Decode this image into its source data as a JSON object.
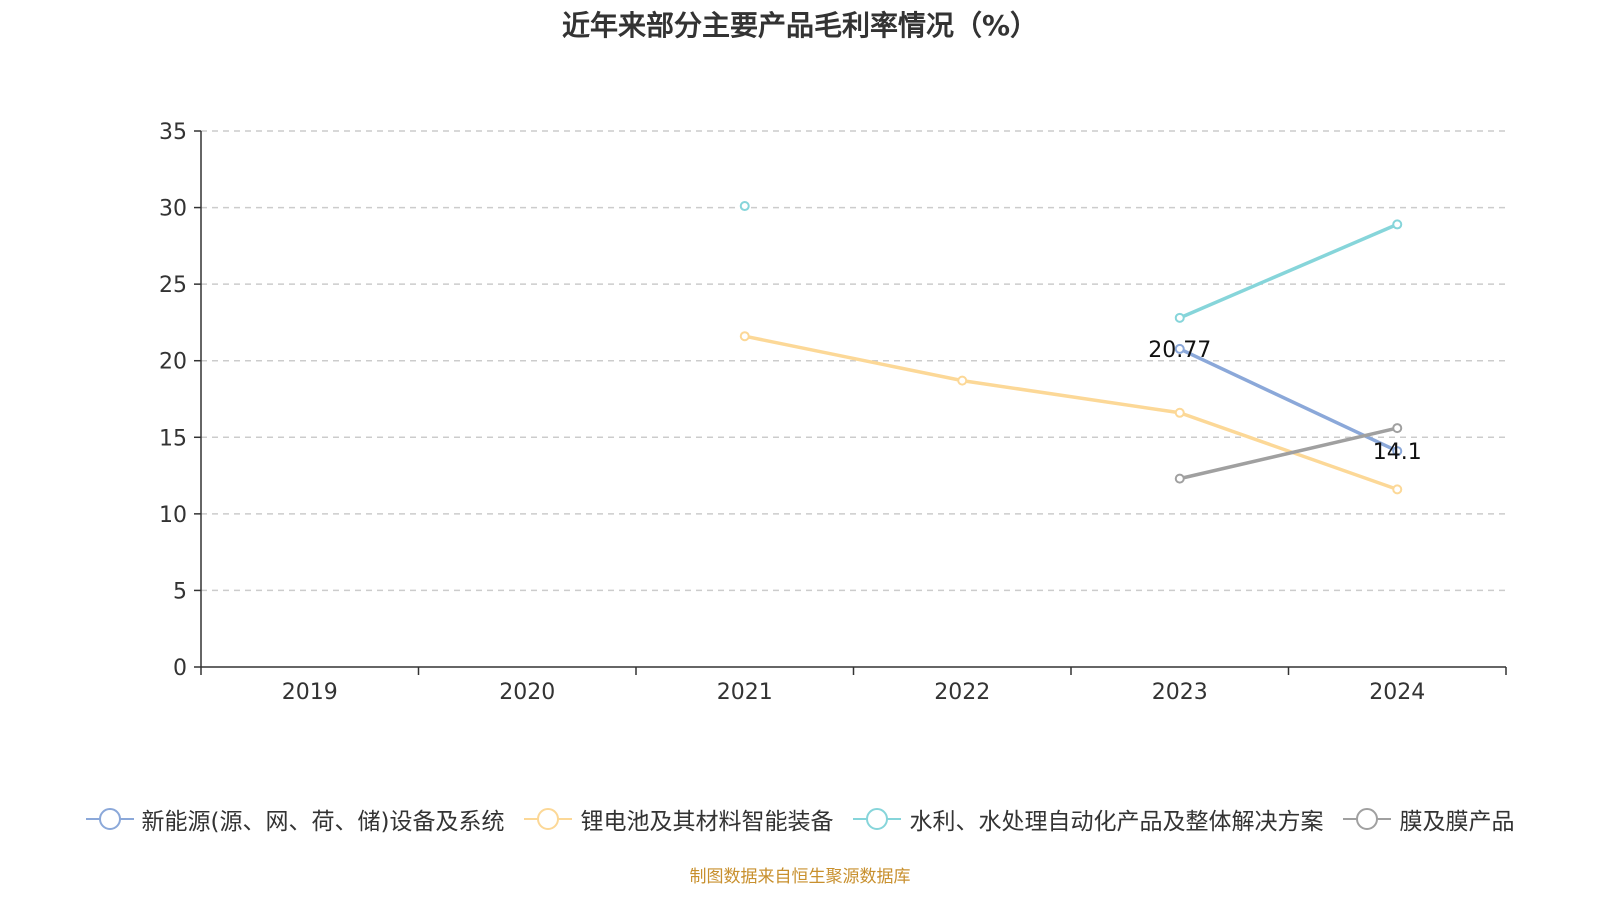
{
  "chart_data": {
    "type": "line",
    "title": "近年来部分主要产品毛利率情况（%）",
    "xlabel": "",
    "ylabel": "",
    "categories": [
      "2019",
      "2020",
      "2021",
      "2022",
      "2023",
      "2024"
    ],
    "ylim": [
      0,
      35
    ],
    "yticks": [
      0,
      5,
      10,
      15,
      20,
      25,
      30,
      35
    ],
    "grid": true,
    "legend_position": "bottom",
    "series": [
      {
        "name": "新能源(源、网、荷、储)设备及系统",
        "color": "#8ba8d9",
        "values": [
          null,
          null,
          null,
          null,
          20.77,
          14.1
        ],
        "labels": [
          null,
          null,
          null,
          null,
          "20.77",
          "14.1"
        ]
      },
      {
        "name": "锂电池及其材料智能装备",
        "color": "#fcd897",
        "values": [
          null,
          null,
          21.6,
          18.7,
          16.6,
          11.6
        ],
        "labels": [
          null,
          null,
          null,
          null,
          null,
          null
        ]
      },
      {
        "name": "水利、水处理自动化产品及整体解决方案",
        "color": "#86d5da",
        "values": [
          null,
          null,
          30.1,
          null,
          22.8,
          28.9
        ],
        "labels": [
          null,
          null,
          null,
          null,
          null,
          null
        ]
      },
      {
        "name": "膜及膜产品",
        "color": "#a0a0a0",
        "values": [
          null,
          null,
          null,
          null,
          12.3,
          15.6
        ],
        "labels": [
          null,
          null,
          null,
          null,
          null,
          null
        ]
      }
    ]
  },
  "source_note": "制图数据来自恒生聚源数据库"
}
